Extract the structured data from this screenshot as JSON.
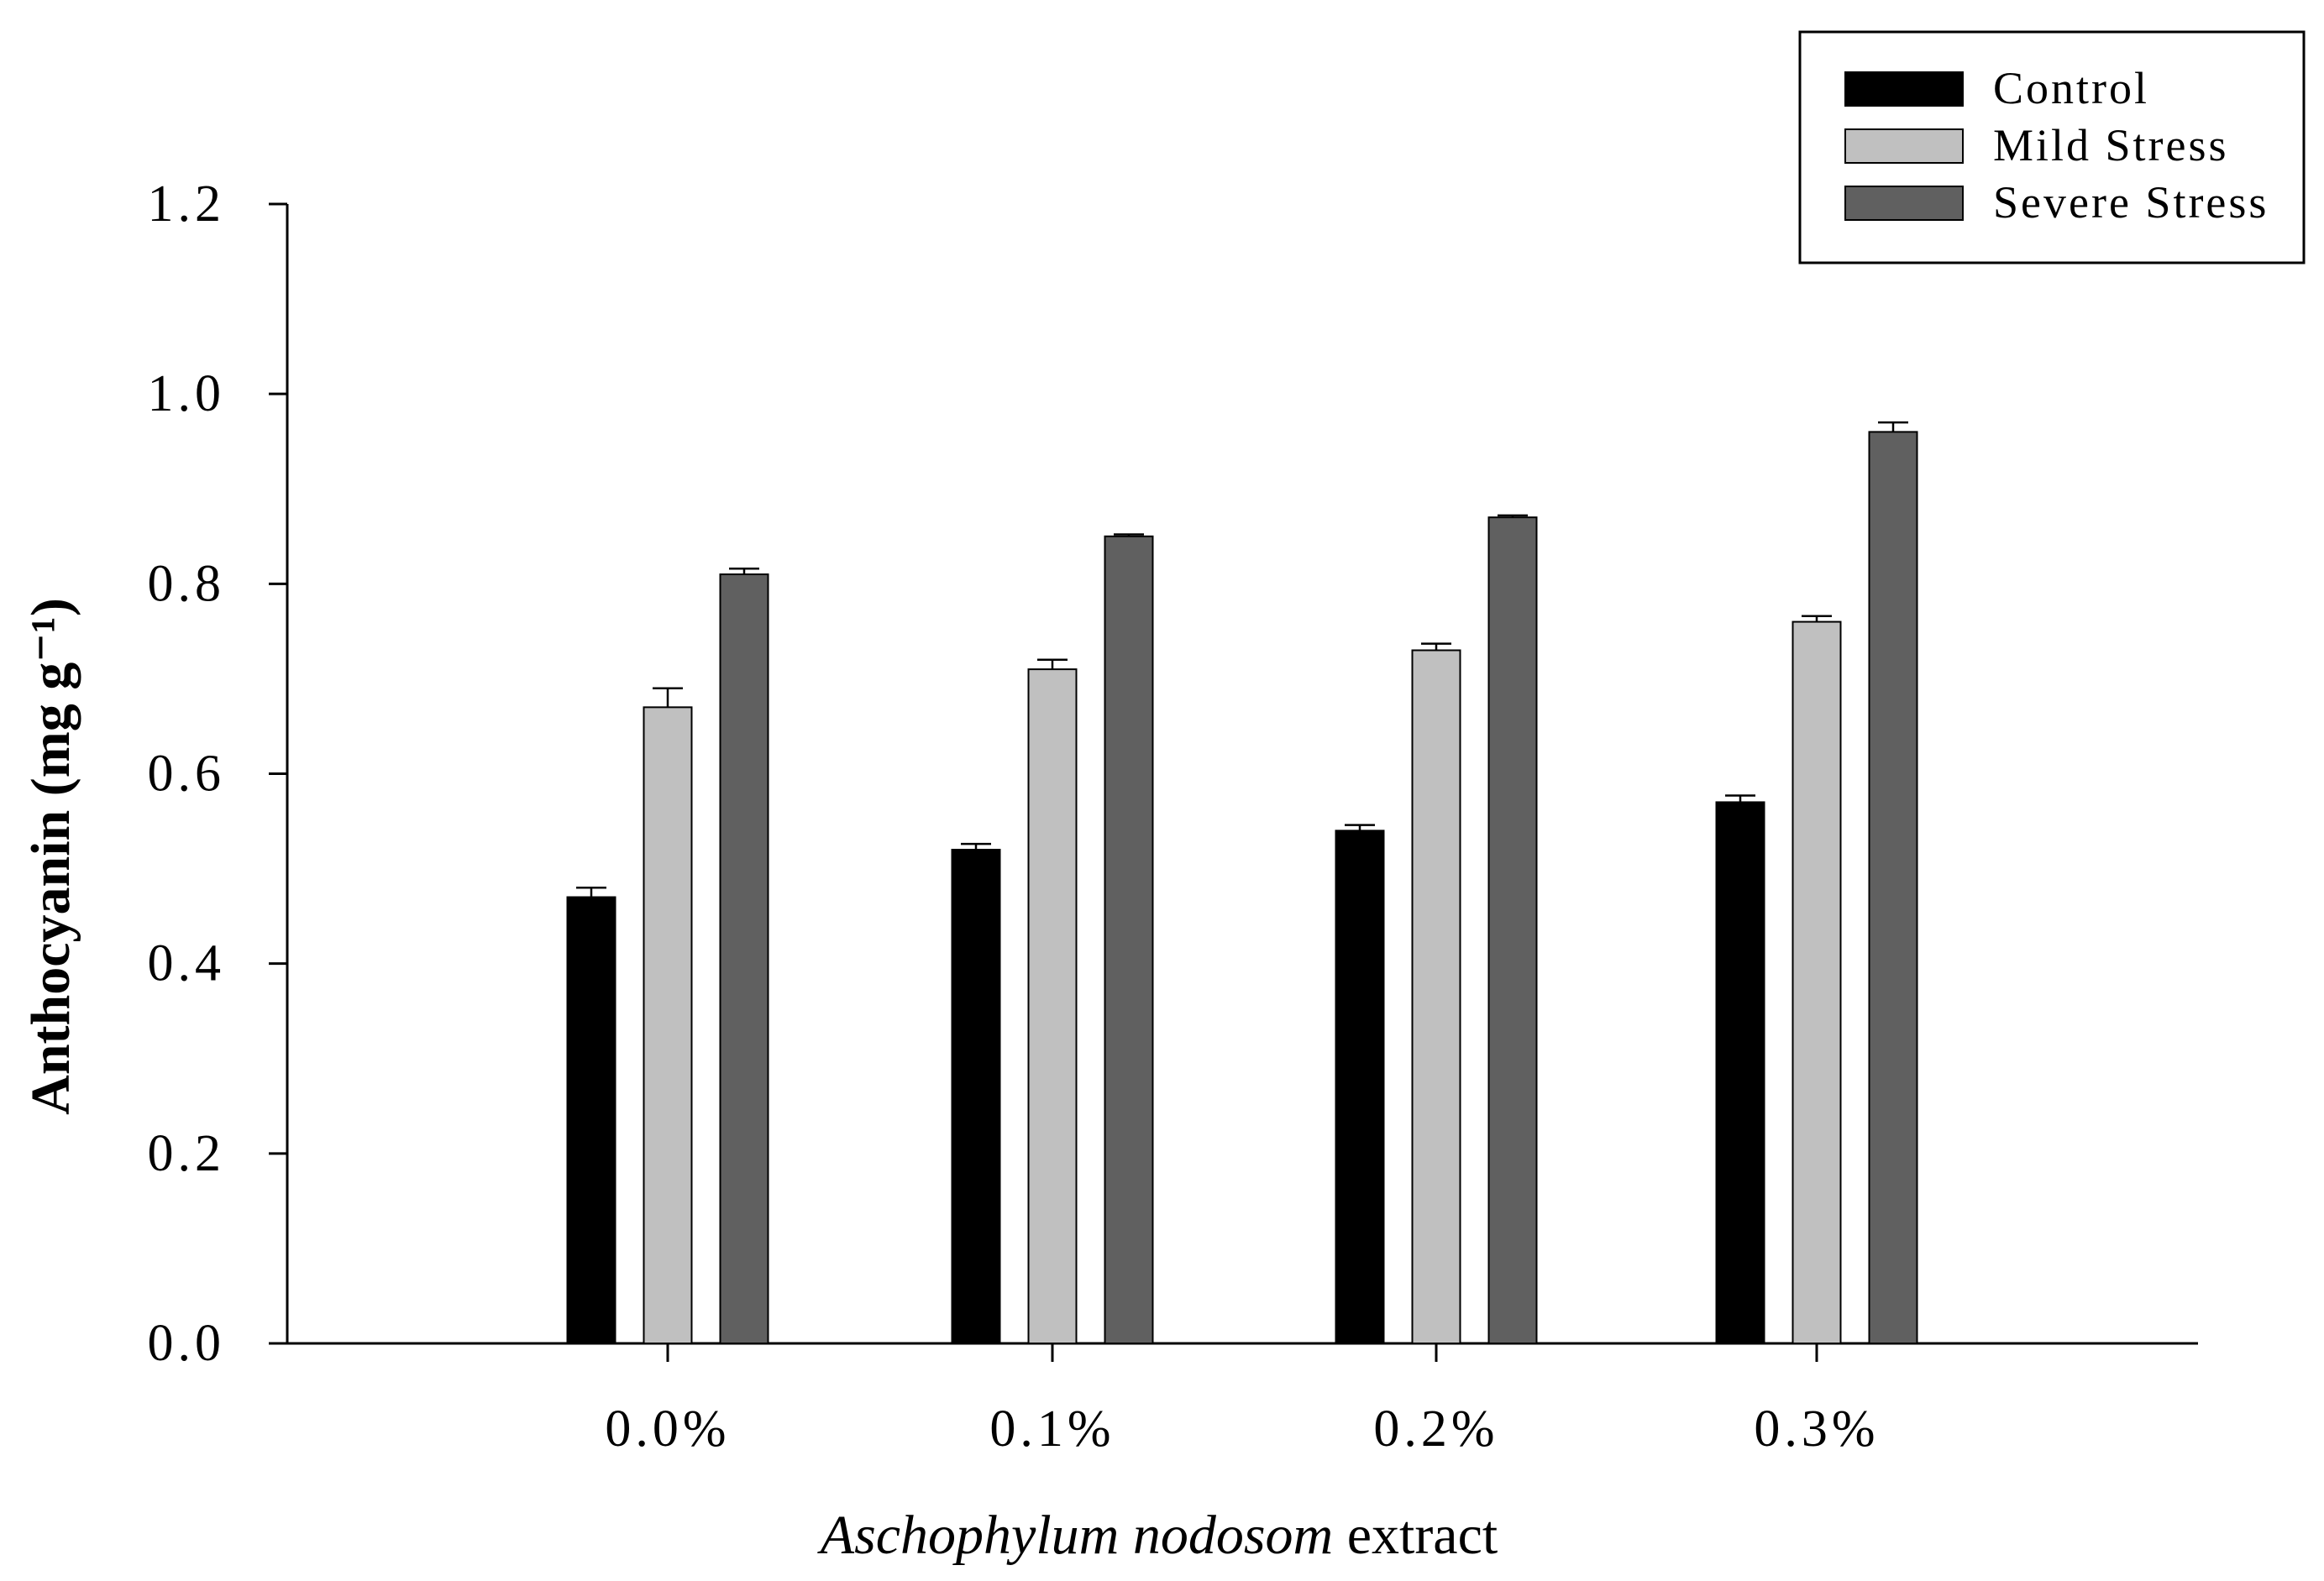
{
  "chart_data": {
    "type": "bar",
    "categories": [
      "0.0%",
      "0.1%",
      "0.2%",
      "0.3%"
    ],
    "series": [
      {
        "name": "Control",
        "values": [
          0.47,
          0.52,
          0.54,
          0.57
        ],
        "errors": [
          0.01,
          0.006,
          0.006,
          0.007
        ],
        "color": "#000000"
      },
      {
        "name": "Mild Stress",
        "values": [
          0.67,
          0.71,
          0.73,
          0.76
        ],
        "errors": [
          0.02,
          0.01,
          0.007,
          0.006
        ],
        "color": "#c0c0c0"
      },
      {
        "name": "Severe Stress",
        "values": [
          0.81,
          0.85,
          0.87,
          0.96
        ],
        "errors": [
          0.006,
          0.002,
          0.002,
          0.01
        ],
        "color": "#606060"
      }
    ],
    "y_ticks": [
      "0.0",
      "0.2",
      "0.4",
      "0.6",
      "0.8",
      "1.0",
      "1.2"
    ],
    "ylim": [
      0,
      1.2
    ],
    "ylabel": "Anthocyanin (mg g⁻¹)",
    "xlabel_italic": "Aschophylum nodosom",
    "xlabel_rest": " extract",
    "legend_position": "top-right",
    "grid": false
  }
}
